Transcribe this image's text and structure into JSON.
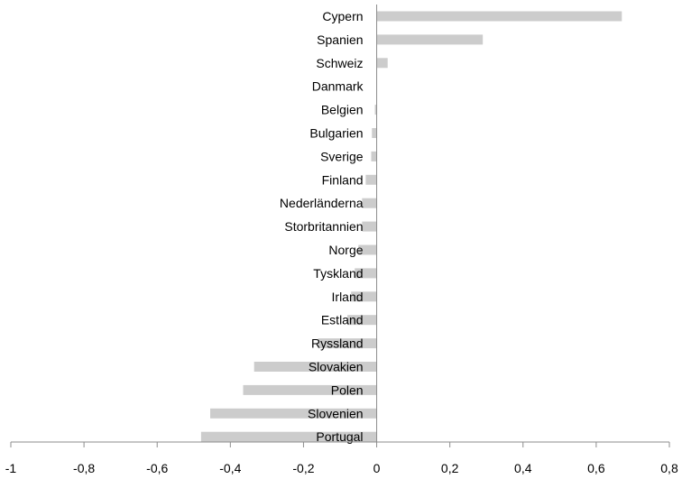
{
  "chart_data": {
    "type": "bar",
    "orientation": "horizontal",
    "title": "",
    "xlabel": "",
    "ylabel": "",
    "categories": [
      "Cypern",
      "Spanien",
      "Schweiz",
      "Danmark",
      "Belgien",
      "Bulgarien",
      "Sverige",
      "Finland",
      "Nederländerna",
      "Storbritannien",
      "Norge",
      "Tyskland",
      "Irland",
      "Estland",
      "Ryssland",
      "Slovakien",
      "Polen",
      "Slovenien",
      "Portugal"
    ],
    "values": [
      0.67,
      0.29,
      0.03,
      0.0,
      -0.005,
      -0.013,
      -0.015,
      -0.03,
      -0.04,
      -0.04,
      -0.05,
      -0.06,
      -0.07,
      -0.08,
      -0.16,
      -0.335,
      -0.365,
      -0.455,
      -0.48
    ],
    "xlim": [
      -1,
      0.8
    ],
    "xticks": [
      -1,
      -0.8,
      -0.6,
      -0.4,
      -0.2,
      0,
      0.2,
      0.4,
      0.6,
      0.8
    ],
    "xtick_labels": [
      "-1",
      "-0,8",
      "-0,6",
      "-0,4",
      "-0,2",
      "0",
      "0,2",
      "0,4",
      "0,6",
      "0,8"
    ],
    "grid": false,
    "legend": "none",
    "bar_color": "#cccccc",
    "axis_color": "#8c8c8c"
  }
}
